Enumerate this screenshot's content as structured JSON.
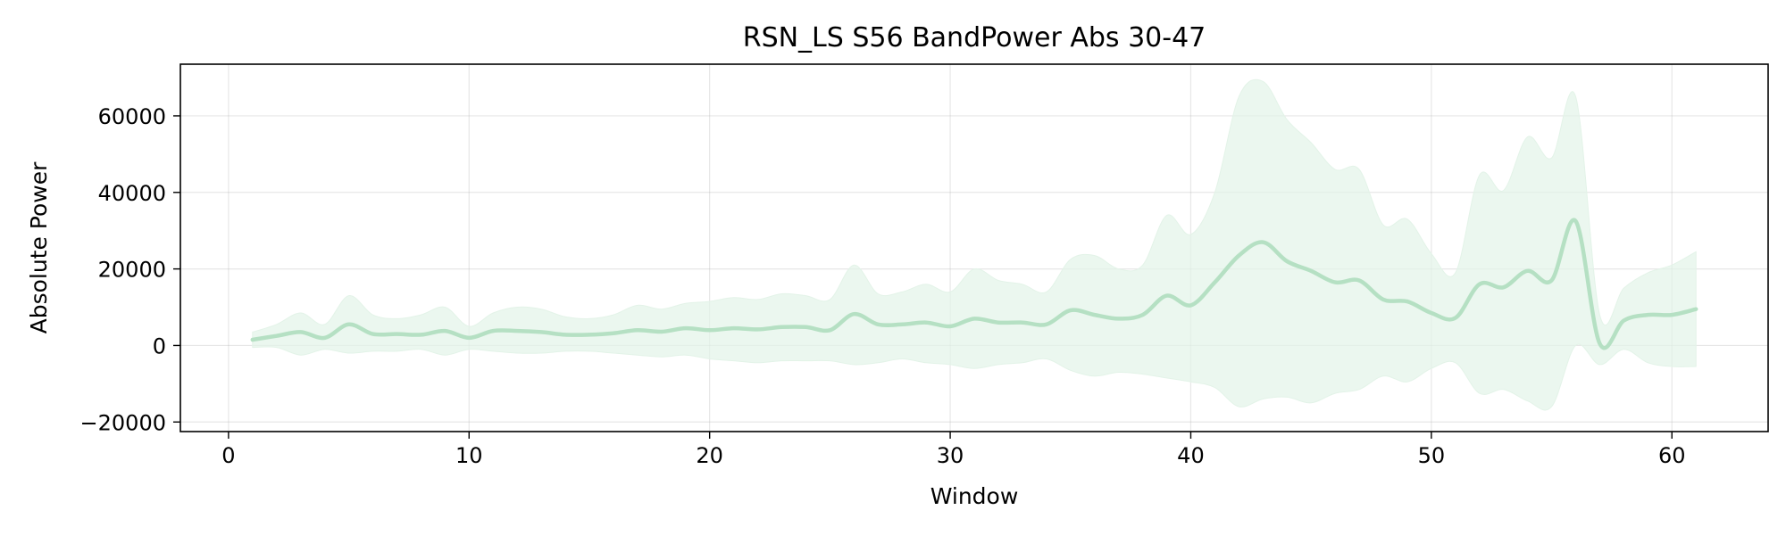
{
  "chart_data": {
    "type": "line",
    "title": "RSN_LS S56 BandPower Abs 30-47",
    "xlabel": "Window",
    "ylabel": "Absolute Power",
    "xlim": [
      -2,
      64
    ],
    "ylim": [
      -22500,
      73500
    ],
    "x_ticks": [
      0,
      10,
      20,
      30,
      40,
      50,
      60
    ],
    "y_ticks": [
      -20000,
      0,
      20000,
      40000,
      60000
    ],
    "y_tick_labels": [
      "−20000",
      "0",
      "20000",
      "40000",
      "60000"
    ],
    "grid": true,
    "legend": "none",
    "colors": {
      "line": "#b5e0c3",
      "band": "#e3f3e8"
    },
    "series": [
      {
        "x": [
          1,
          2,
          3,
          4,
          5,
          6,
          7,
          8,
          9,
          10,
          11,
          12,
          13,
          14,
          15,
          16,
          17,
          18,
          19,
          20,
          21,
          22,
          23,
          24,
          25,
          26,
          27,
          28,
          29,
          30,
          31,
          32,
          33,
          34,
          35,
          36,
          37,
          38,
          39,
          40,
          41,
          42,
          43,
          44,
          45,
          46,
          47,
          48,
          49,
          50,
          51,
          52,
          53,
          54,
          55,
          56,
          57,
          58,
          59,
          60,
          61
        ],
        "y": [
          1500,
          2500,
          3500,
          2000,
          5500,
          3000,
          3000,
          2800,
          3800,
          2000,
          3800,
          3800,
          3500,
          2800,
          2800,
          3200,
          4000,
          3600,
          4500,
          4000,
          4500,
          4200,
          4800,
          4800,
          4000,
          8200,
          5500,
          5500,
          6000,
          5000,
          7000,
          6000,
          6000,
          5500,
          9200,
          8000,
          7000,
          8000,
          13000,
          10500,
          16500,
          23500,
          27000,
          22000,
          19500,
          16500,
          17000,
          12000,
          11500,
          8500,
          7200,
          16000,
          15200,
          19500,
          17000,
          32500,
          500,
          6500,
          8000,
          8000,
          9500
        ],
        "upper": [
          3500,
          5500,
          8500,
          5500,
          13000,
          8000,
          7000,
          8000,
          10000,
          5000,
          8500,
          10000,
          9500,
          7500,
          7000,
          8000,
          10500,
          9500,
          11000,
          11500,
          12500,
          12000,
          13500,
          13000,
          12000,
          21000,
          13500,
          14000,
          16000,
          14000,
          20000,
          17000,
          16000,
          14000,
          22500,
          23500,
          20000,
          21000,
          34000,
          29000,
          40000,
          65000,
          69000,
          59000,
          53000,
          46000,
          46000,
          31500,
          33000,
          24000,
          19000,
          44500,
          40500,
          54500,
          49000,
          65000,
          8000,
          15000,
          19000,
          21000,
          24500
        ],
        "lower": [
          -500,
          -500,
          -2500,
          -1000,
          -2000,
          -1500,
          -1500,
          -1000,
          -2500,
          -1000,
          -1500,
          -2000,
          -2000,
          -1500,
          -1500,
          -2000,
          -2500,
          -3000,
          -2500,
          -3500,
          -4000,
          -4500,
          -4000,
          -4000,
          -4000,
          -5000,
          -4500,
          -3500,
          -4500,
          -5000,
          -6000,
          -5000,
          -4500,
          -3500,
          -6500,
          -8000,
          -7000,
          -7500,
          -8500,
          -9500,
          -11000,
          -16000,
          -14000,
          -13500,
          -15000,
          -12500,
          -11500,
          -8000,
          -9500,
          -6000,
          -4500,
          -12500,
          -11500,
          -14500,
          -16000,
          0,
          -5000,
          -1000,
          -4500,
          -5500,
          -5500
        ]
      }
    ]
  }
}
